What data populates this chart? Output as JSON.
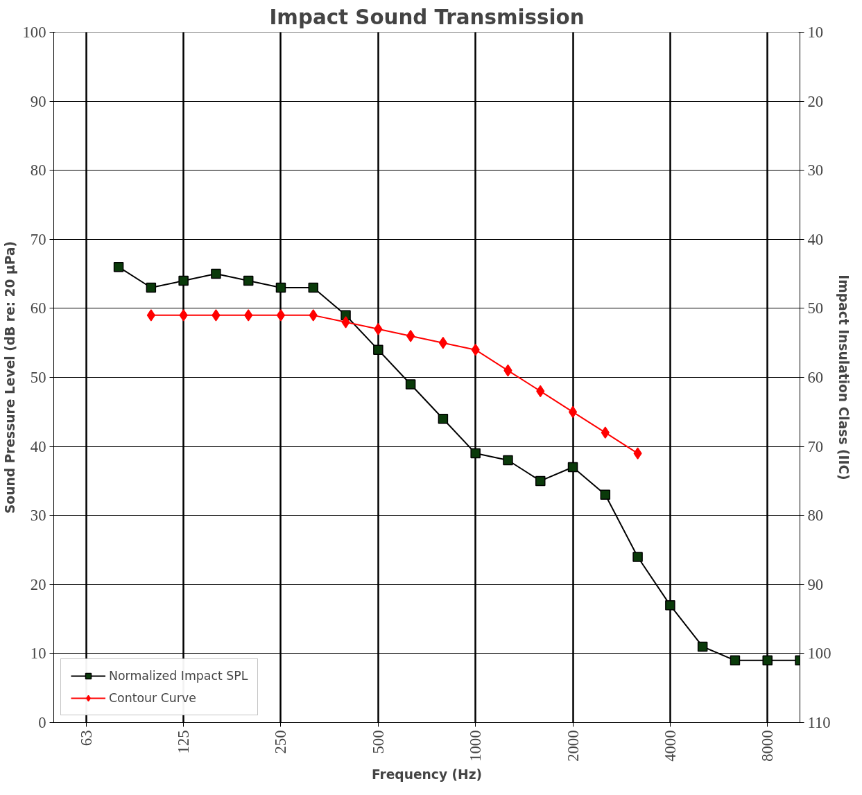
{
  "chart_data": {
    "type": "line",
    "title": "Impact Sound Transmission",
    "xlabel": "Frequency (Hz)",
    "ylabel": "Sound Pressure Level (dB re: 20 µPa)",
    "y2label": "Impact Insulation Class (IIC)",
    "categories": [
      null,
      "63",
      null,
      null,
      "125",
      null,
      null,
      "250",
      null,
      null,
      "500",
      null,
      null,
      "1000",
      null,
      null,
      "2000",
      null,
      null,
      "4000",
      null,
      null,
      "8000",
      null
    ],
    "series": [
      {
        "name": "Normalized Impact SPL",
        "color": "#000000",
        "marker": "square",
        "values": [
          null,
          null,
          66,
          63,
          64,
          65,
          64,
          63,
          63,
          59,
          54,
          49,
          44,
          39,
          38,
          35,
          37,
          33,
          24,
          17,
          11,
          9,
          9,
          9
        ]
      },
      {
        "name": "Contour Curve",
        "color": "#ff0000",
        "marker": "diamond",
        "values": [
          null,
          null,
          null,
          59,
          59,
          59,
          59,
          59,
          59,
          58,
          57,
          56,
          55,
          54,
          51,
          48,
          45,
          42,
          39,
          null,
          null,
          null,
          null,
          null
        ]
      }
    ],
    "ylim": [
      0,
      100
    ],
    "yticks": [
      0,
      10,
      20,
      30,
      40,
      50,
      60,
      70,
      80,
      90,
      100
    ],
    "y2lim": [
      110,
      10
    ],
    "y2ticks": [
      10,
      20,
      30,
      40,
      50,
      60,
      70,
      80,
      90,
      100,
      110
    ],
    "grid": true,
    "legend": "bottom left",
    "line_style": "solid"
  }
}
